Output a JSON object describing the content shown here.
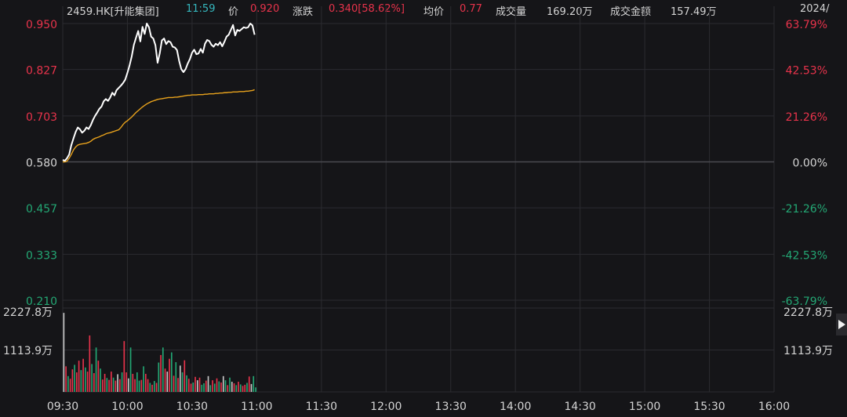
{
  "header": {
    "ticker": "2459.HK[升能集团]",
    "time": "11:59",
    "price_label": "价",
    "price": "0.920",
    "change_label": "涨跌",
    "change": "0.340[58.62%]",
    "avg_label": "均价",
    "avg": "0.77",
    "volume_label": "成交量",
    "volume": "169.20万",
    "turnover_label": "成交金额",
    "turnover": "157.49万",
    "date": "2024/"
  },
  "colors": {
    "background": "#151518",
    "price_line": "#ffffff",
    "avg_line": "#e8a21c",
    "up": "#e8334b",
    "down": "#23a774",
    "neutral": "#c8c8c8"
  },
  "chart_data": {
    "type": "line",
    "title": "",
    "prev_close": 0.58,
    "y_ticks_left": [
      "0.950",
      "0.827",
      "0.703",
      "0.580",
      "0.457",
      "0.333",
      "0.210"
    ],
    "y_ticks_right": [
      "63.79%",
      "42.53%",
      "21.26%",
      "0.00%",
      "-21.26%",
      "-42.53%",
      "-63.79%"
    ],
    "ylim": [
      0.21,
      0.95
    ],
    "x_ticks": [
      "09:30",
      "10:00",
      "10:30",
      "11:00",
      "11:30",
      "12:00",
      "13:30",
      "14:00",
      "14:30",
      "15:00",
      "15:30",
      "16:00"
    ],
    "volume_ticks": [
      "2227.8万",
      "1113.9万"
    ],
    "volume_max": 2227.8,
    "series": [
      {
        "key": "price",
        "x": [
          0,
          1,
          2,
          3,
          4,
          5,
          6,
          7,
          8,
          9,
          10,
          11,
          12,
          13,
          14,
          15,
          16,
          17,
          18,
          19,
          20,
          21,
          22,
          23,
          24,
          25,
          26,
          27,
          28,
          29,
          30,
          31,
          32,
          33,
          34,
          35,
          36,
          37,
          38,
          39,
          40,
          41,
          42,
          43,
          44,
          45,
          46,
          47,
          48,
          49,
          50,
          51,
          52,
          53,
          54,
          55,
          56,
          57,
          58,
          59,
          60,
          61,
          62,
          63,
          64,
          65,
          66,
          67,
          68,
          69,
          70,
          71,
          72,
          73,
          74,
          75,
          76,
          77,
          78,
          79,
          80,
          81,
          82,
          83,
          84,
          85,
          86,
          87,
          88,
          89
        ],
        "values": [
          0.585,
          0.583,
          0.59,
          0.6,
          0.625,
          0.643,
          0.66,
          0.672,
          0.667,
          0.658,
          0.663,
          0.672,
          0.668,
          0.678,
          0.692,
          0.703,
          0.712,
          0.722,
          0.728,
          0.742,
          0.748,
          0.743,
          0.752,
          0.765,
          0.758,
          0.772,
          0.778,
          0.784,
          0.791,
          0.8,
          0.818,
          0.838,
          0.862,
          0.893,
          0.912,
          0.93,
          0.902,
          0.941,
          0.922,
          0.95,
          0.94,
          0.915,
          0.91,
          0.892,
          0.845,
          0.87,
          0.905,
          0.91,
          0.895,
          0.903,
          0.9,
          0.888,
          0.886,
          0.879,
          0.85,
          0.828,
          0.82,
          0.828,
          0.843,
          0.855,
          0.872,
          0.88,
          0.868,
          0.87,
          0.882,
          0.872,
          0.896,
          0.906,
          0.903,
          0.893,
          0.888,
          0.896,
          0.892,
          0.9,
          0.889,
          0.901,
          0.915,
          0.92,
          0.933,
          0.946,
          0.918,
          0.933,
          0.93,
          0.935,
          0.94,
          0.938,
          0.94,
          0.95,
          0.945,
          0.92
        ]
      },
      {
        "key": "average",
        "x": [
          0,
          1,
          2,
          3,
          4,
          5,
          6,
          7,
          8,
          9,
          10,
          11,
          12,
          13,
          14,
          15,
          16,
          17,
          18,
          19,
          20,
          21,
          22,
          23,
          24,
          25,
          26,
          27,
          28,
          29,
          30,
          31,
          32,
          33,
          34,
          35,
          36,
          37,
          38,
          39,
          40,
          41,
          42,
          43,
          44,
          45,
          46,
          47,
          48,
          49,
          50,
          51,
          52,
          53,
          54,
          55,
          56,
          57,
          58,
          59,
          60,
          61,
          62,
          63,
          64,
          65,
          66,
          67,
          68,
          69,
          70,
          71,
          72,
          73,
          74,
          75,
          76,
          77,
          78,
          79,
          80,
          81,
          82,
          83,
          84,
          85,
          86,
          87,
          88,
          89
        ],
        "values": [
          0.58,
          0.58,
          0.582,
          0.59,
          0.6,
          0.612,
          0.62,
          0.625,
          0.627,
          0.628,
          0.629,
          0.63,
          0.632,
          0.635,
          0.64,
          0.643,
          0.645,
          0.647,
          0.65,
          0.652,
          0.655,
          0.657,
          0.658,
          0.66,
          0.662,
          0.664,
          0.666,
          0.672,
          0.68,
          0.686,
          0.69,
          0.695,
          0.7,
          0.706,
          0.712,
          0.717,
          0.722,
          0.727,
          0.731,
          0.735,
          0.738,
          0.741,
          0.743,
          0.745,
          0.747,
          0.748,
          0.749,
          0.75,
          0.751,
          0.752,
          0.752,
          0.752,
          0.753,
          0.753,
          0.754,
          0.755,
          0.756,
          0.757,
          0.758,
          0.758,
          0.759,
          0.759,
          0.759,
          0.76,
          0.76,
          0.76,
          0.761,
          0.761,
          0.762,
          0.762,
          0.762,
          0.763,
          0.763,
          0.764,
          0.764,
          0.765,
          0.765,
          0.766,
          0.766,
          0.767,
          0.767,
          0.767,
          0.768,
          0.768,
          0.768,
          0.769,
          0.769,
          0.77,
          0.771,
          0.773
        ]
      },
      {
        "key": "volume",
        "x": [
          0,
          1,
          2,
          3,
          4,
          5,
          6,
          7,
          8,
          9,
          10,
          11,
          12,
          13,
          14,
          15,
          16,
          17,
          18,
          19,
          20,
          21,
          22,
          23,
          24,
          25,
          26,
          27,
          28,
          29,
          30,
          31,
          32,
          33,
          34,
          35,
          36,
          37,
          38,
          39,
          40,
          41,
          42,
          43,
          44,
          45,
          46,
          47,
          48,
          49,
          50,
          51,
          52,
          53,
          54,
          55,
          56,
          57,
          58,
          59,
          60,
          61,
          62,
          63,
          64,
          65,
          66,
          67,
          68,
          69,
          70,
          71,
          72,
          73,
          74,
          75,
          76,
          77,
          78,
          79,
          80,
          81,
          82,
          83,
          84,
          85,
          86,
          87,
          88,
          89
        ],
        "values": [
          2100,
          680,
          420,
          350,
          600,
          720,
          520,
          830,
          580,
          880,
          650,
          540,
          1500,
          740,
          500,
          1180,
          830,
          620,
          330,
          480,
          370,
          320,
          540,
          380,
          300,
          470,
          340,
          520,
          1350,
          520,
          360,
          1180,
          480,
          340,
          520,
          300,
          320,
          680,
          480,
          340,
          240,
          190,
          290,
          240,
          780,
          980,
          1180,
          620,
          540,
          880,
          1050,
          430,
          790,
          370,
          700,
          520,
          840,
          440,
          350,
          220,
          250,
          400,
          310,
          380,
          190,
          230,
          300,
          420,
          180,
          310,
          220,
          360,
          280,
          250,
          420,
          310,
          180,
          380,
          270,
          230,
          180,
          270,
          200,
          160,
          190,
          240,
          410,
          210,
          420,
          120
        ],
        "direction": [
          "n",
          "u",
          "d",
          "u",
          "u",
          "d",
          "u",
          "u",
          "d",
          "u",
          "d",
          "u",
          "u",
          "d",
          "u",
          "d",
          "u",
          "d",
          "u",
          "u",
          "d",
          "u",
          "u",
          "d",
          "u",
          "n",
          "u",
          "d",
          "u",
          "u",
          "n",
          "d",
          "u",
          "u",
          "d",
          "d",
          "u",
          "d",
          "u",
          "u",
          "d",
          "u",
          "d",
          "u",
          "d",
          "u",
          "d",
          "u",
          "n",
          "u",
          "d",
          "u",
          "d",
          "u",
          "n",
          "d",
          "u",
          "d",
          "u",
          "u",
          "d",
          "u",
          "n",
          "u",
          "d",
          "d",
          "u",
          "n",
          "d",
          "u",
          "d",
          "u",
          "d",
          "u",
          "n",
          "d",
          "u",
          "d",
          "n",
          "u",
          "d",
          "u",
          "d",
          "u",
          "u",
          "d",
          "u",
          "n",
          "d",
          "d"
        ]
      }
    ]
  }
}
